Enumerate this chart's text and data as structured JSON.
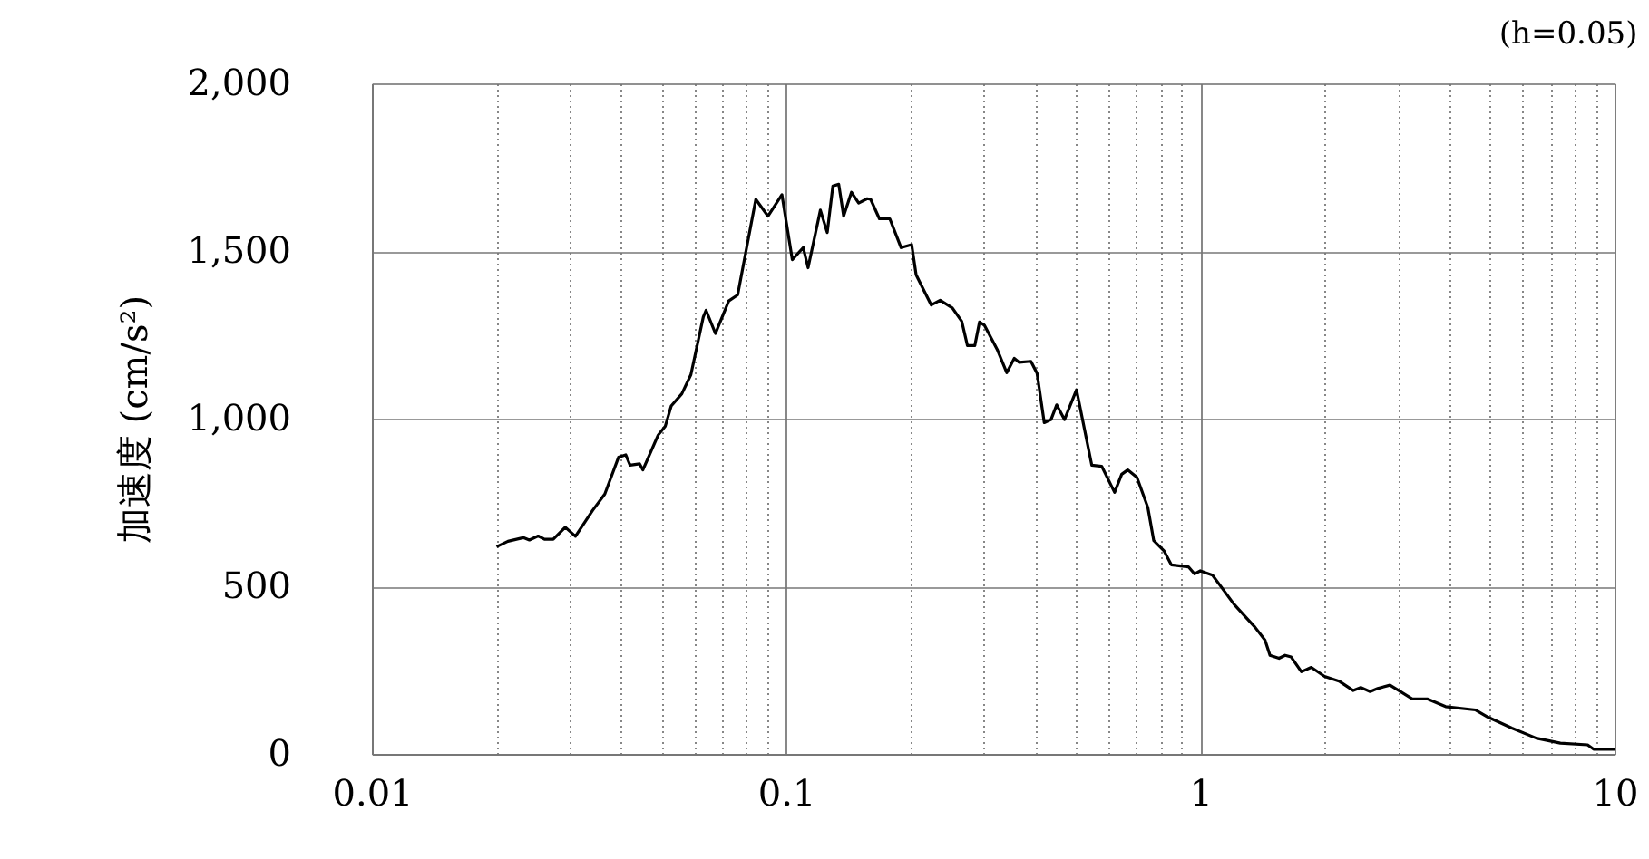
{
  "chart_data": {
    "type": "line",
    "annotations": [
      "(h=0.05)"
    ],
    "ylabel": "加速度 (cm/s²)",
    "xlim": [
      0.01,
      10
    ],
    "xticks": [
      {
        "value": 0.01,
        "label": "0.01"
      },
      {
        "value": 0.02,
        "label": null
      },
      {
        "value": 0.03,
        "label": null
      },
      {
        "value": 0.04,
        "label": null
      },
      {
        "value": 0.05,
        "label": null
      },
      {
        "value": 0.06,
        "label": null
      },
      {
        "value": 0.07,
        "label": null
      },
      {
        "value": 0.08,
        "label": null
      },
      {
        "value": 0.09,
        "label": null
      },
      {
        "value": 0.1,
        "label": "0.1"
      },
      {
        "value": 0.2,
        "label": null
      },
      {
        "value": 0.3,
        "label": null
      },
      {
        "value": 0.4,
        "label": null
      },
      {
        "value": 0.5,
        "label": null
      },
      {
        "value": 0.6,
        "label": null
      },
      {
        "value": 0.7,
        "label": null
      },
      {
        "value": 0.8,
        "label": null
      },
      {
        "value": 0.9,
        "label": null
      },
      1,
      {
        "value": 2,
        "label": null
      },
      {
        "value": 3,
        "label": null
      },
      {
        "value": 4,
        "label": null
      },
      {
        "value": 5,
        "label": null
      },
      {
        "value": 6,
        "label": null
      },
      {
        "value": 7,
        "label": null
      },
      {
        "value": 8,
        "label": null
      },
      {
        "value": 9,
        "label": null
      },
      10
    ],
    "ylim": [
      0,
      2000
    ],
    "yticks": [
      0,
      500,
      {
        "value": 1000,
        "label": "1,000"
      },
      {
        "value": 1500,
        "label": "1,500"
      },
      {
        "value": 2000,
        "label": "2,000"
      }
    ],
    "log": "x",
    "grid": true,
    "marker": "none",
    "line_style": "solid",
    "series": [
      {
        "color": "#000000",
        "x": [
          0.02,
          0.0213,
          0.0232,
          0.024,
          0.0252,
          0.0261,
          0.0274,
          0.0293,
          0.031,
          0.0341,
          0.0365,
          0.0394,
          0.041,
          0.042,
          0.0443,
          0.0451,
          0.0491,
          0.0511,
          0.0528,
          0.056,
          0.0589,
          0.0631,
          0.0641,
          0.0675,
          0.0727,
          0.0764,
          0.0845,
          0.0904,
          0.0977,
          0.1035,
          0.11,
          0.113,
          0.121,
          0.1257,
          0.1297,
          0.134,
          0.1377,
          0.1438,
          0.1497,
          0.157,
          0.16,
          0.168,
          0.178,
          0.1895,
          0.201,
          0.206,
          0.224,
          0.2355,
          0.252,
          0.2655,
          0.274,
          0.2855,
          0.293,
          0.301,
          0.324,
          0.341,
          0.3555,
          0.365,
          0.39,
          0.4035,
          0.42,
          0.436,
          0.45,
          0.47,
          0.5025,
          0.547,
          0.578,
          0.621,
          0.646,
          0.668,
          0.703,
          0.747,
          0.772,
          0.818,
          0.851,
          0.936,
          0.968,
          1.0,
          1.07,
          1.125,
          1.205,
          1.289,
          1.355,
          1.433,
          1.473,
          1.549,
          1.602,
          1.657,
          1.754,
          1.853,
          1.995,
          2.17,
          2.34,
          2.44,
          2.57,
          2.68,
          2.87,
          3.04,
          3.25,
          3.53,
          3.91,
          4.62,
          4.94,
          5.65,
          6.47,
          7.4,
          8.61,
          8.9,
          10
        ],
        "values": [
          618,
          634,
          645,
          638,
          650,
          640,
          640,
          676,
          649,
          726,
          775,
          885,
          892,
          861,
          865,
          847,
          951,
          978,
          1038,
          1074,
          1131,
          1303,
          1323,
          1254,
          1351,
          1369,
          1654,
          1604,
          1668,
          1474,
          1510,
          1450,
          1622,
          1555,
          1694,
          1699,
          1604,
          1675,
          1643,
          1656,
          1654,
          1596,
          1596,
          1510,
          1519,
          1429,
          1339,
          1353,
          1330,
          1290,
          1218,
          1218,
          1288,
          1279,
          1204,
          1137,
          1180,
          1168,
          1171,
          1135,
          988,
          997,
          1041,
          997,
          1086,
          861,
          858,
          780,
          834,
          847,
          825,
          735,
          636,
          605,
          564,
          558,
          537,
          546,
          533,
          497,
          447,
          407,
          378,
          339,
          294,
          285,
          294,
          289,
          245,
          258,
          231,
          216,
          189,
          198,
          186,
          195,
          205,
          186,
          164,
          164,
          141,
          131,
          110,
          77,
          47,
          32,
          27,
          14,
          14
        ]
      }
    ]
  }
}
